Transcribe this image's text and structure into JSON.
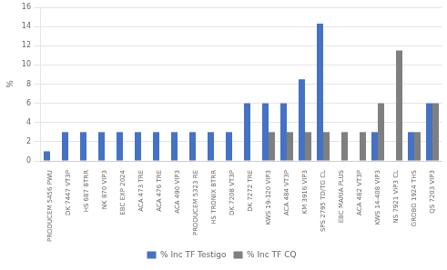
{
  "chart_data": {
    "type": "bar",
    "categories": [
      "PRODUCEM 5456 PWU",
      "DK 7447 VT3P",
      "HS 687 BTRR",
      "NK 870 VIP3",
      "EBC EXP 2024",
      "ACA 473 TRE",
      "ACA 476 TRE",
      "ACA 490 VIP3",
      "PRODUCEM 5323 RE",
      "HS TRONIX BTRR",
      "DK 7208 VT3P",
      "DK 7272 TRE",
      "KWS 19-120 VIP3",
      "ACA 484 VT3P",
      "KM 3916 VIP3",
      "SPS 2795 TD/TG CL",
      "EBC MARIA PLUS",
      "ACA 482 VT3P",
      "KWS 14-408 VIP3",
      "NS 7921 VIP3 CL",
      "GROBO 1924 THS",
      "QS 7203 VIP3"
    ],
    "series": [
      {
        "name": "% Inc TF Testigo",
        "color": "#4472C4",
        "values": [
          1.0,
          3.0,
          3.0,
          3.0,
          3.0,
          3.0,
          3.0,
          3.0,
          3.0,
          3.0,
          3.0,
          6.0,
          6.0,
          6.0,
          8.5,
          14.3,
          0.0,
          0.0,
          3.0,
          0.0,
          3.0,
          6.0
        ]
      },
      {
        "name": "% Inc TF CQ",
        "color": "#7F7F7F",
        "values": [
          0.0,
          0.0,
          0.0,
          0.0,
          0.0,
          0.0,
          0.0,
          0.0,
          0.0,
          0.0,
          0.0,
          0.0,
          3.0,
          3.0,
          3.0,
          3.0,
          3.0,
          3.0,
          6.0,
          11.5,
          3.0,
          6.0
        ]
      }
    ],
    "ylabel": "%",
    "ylim": [
      0,
      16
    ],
    "yticks": [
      0,
      2,
      4,
      6,
      8,
      10,
      12,
      14,
      16
    ],
    "grid": true,
    "legend": "bottom"
  }
}
